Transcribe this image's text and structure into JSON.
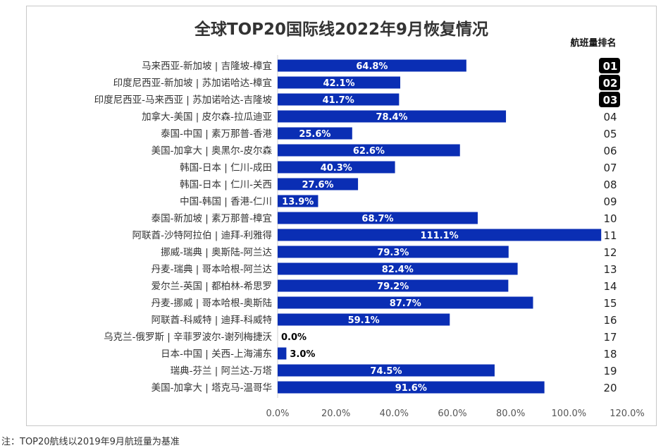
{
  "chart_data": {
    "type": "bar",
    "orientation": "horizontal",
    "title": "全球TOP20国际线2022年9月恢复情况",
    "rank_header": "航班量排名",
    "note": "注：TOP20航线以2019年9月航班量为基准",
    "categories": [
      "马来西亚-新加坡 | 吉隆坡-樟宜",
      "印度尼西亚-新加坡 | 苏加诺哈达-樟宜",
      "印度尼西亚-马来西亚 | 苏加诺哈达-吉隆坡",
      "加拿大-美国 | 皮尔森-拉瓜迪亚",
      "泰国-中国 | 素万那普-香港",
      "美国-加拿大 | 奥黑尔-皮尔森",
      "韩国-日本 | 仁川-成田",
      "韩国-日本 | 仁川-关西",
      "中国-韩国 | 香港-仁川",
      "泰国-新加坡 | 素万那普-樟宜",
      "阿联酋-沙特阿拉伯 | 迪拜-利雅得",
      "挪威-瑞典 | 奥斯陆-阿兰达",
      "丹麦-瑞典 | 哥本哈根-阿兰达",
      "爱尔兰-英国 | 都柏林-希思罗",
      "丹麦-挪威 | 哥本哈根-奥斯陆",
      "阿联酋-科威特 | 迪拜-科威特",
      "乌克兰-俄罗斯 | 辛菲罗波尔-谢列梅捷沃",
      "日本-中国 | 关西-上海浦东",
      "瑞典-芬兰 | 阿兰达-万塔",
      "美国-加拿大 | 塔克马-温哥华"
    ],
    "values": [
      64.8,
      42.1,
      41.7,
      78.4,
      25.6,
      62.6,
      40.3,
      27.6,
      13.9,
      68.7,
      111.1,
      79.3,
      82.4,
      79.2,
      87.7,
      59.1,
      0.0,
      3.0,
      74.5,
      91.6
    ],
    "value_labels": [
      "64.8%",
      "42.1%",
      "41.7%",
      "78.4%",
      "25.6%",
      "62.6%",
      "40.3%",
      "27.6%",
      "13.9%",
      "68.7%",
      "111.1%",
      "79.3%",
      "82.4%",
      "79.2%",
      "87.7%",
      "59.1%",
      "0.0%",
      "3.0%",
      "74.5%",
      "91.6%"
    ],
    "ranks": [
      "01",
      "02",
      "03",
      "04",
      "05",
      "06",
      "07",
      "08",
      "09",
      "10",
      "11",
      "12",
      "13",
      "14",
      "15",
      "16",
      "17",
      "18",
      "19",
      "20"
    ],
    "highlighted_ranks": [
      "01",
      "02",
      "03"
    ],
    "xlim": [
      0,
      120
    ],
    "xticks": [
      "0.0%",
      "20.0%",
      "40.0%",
      "60.0%",
      "80.0%",
      "100.0%",
      "120.0%"
    ],
    "grid": false,
    "legend": "none",
    "bar_color": "#0a2eb4",
    "highlight_color": "#000000"
  }
}
